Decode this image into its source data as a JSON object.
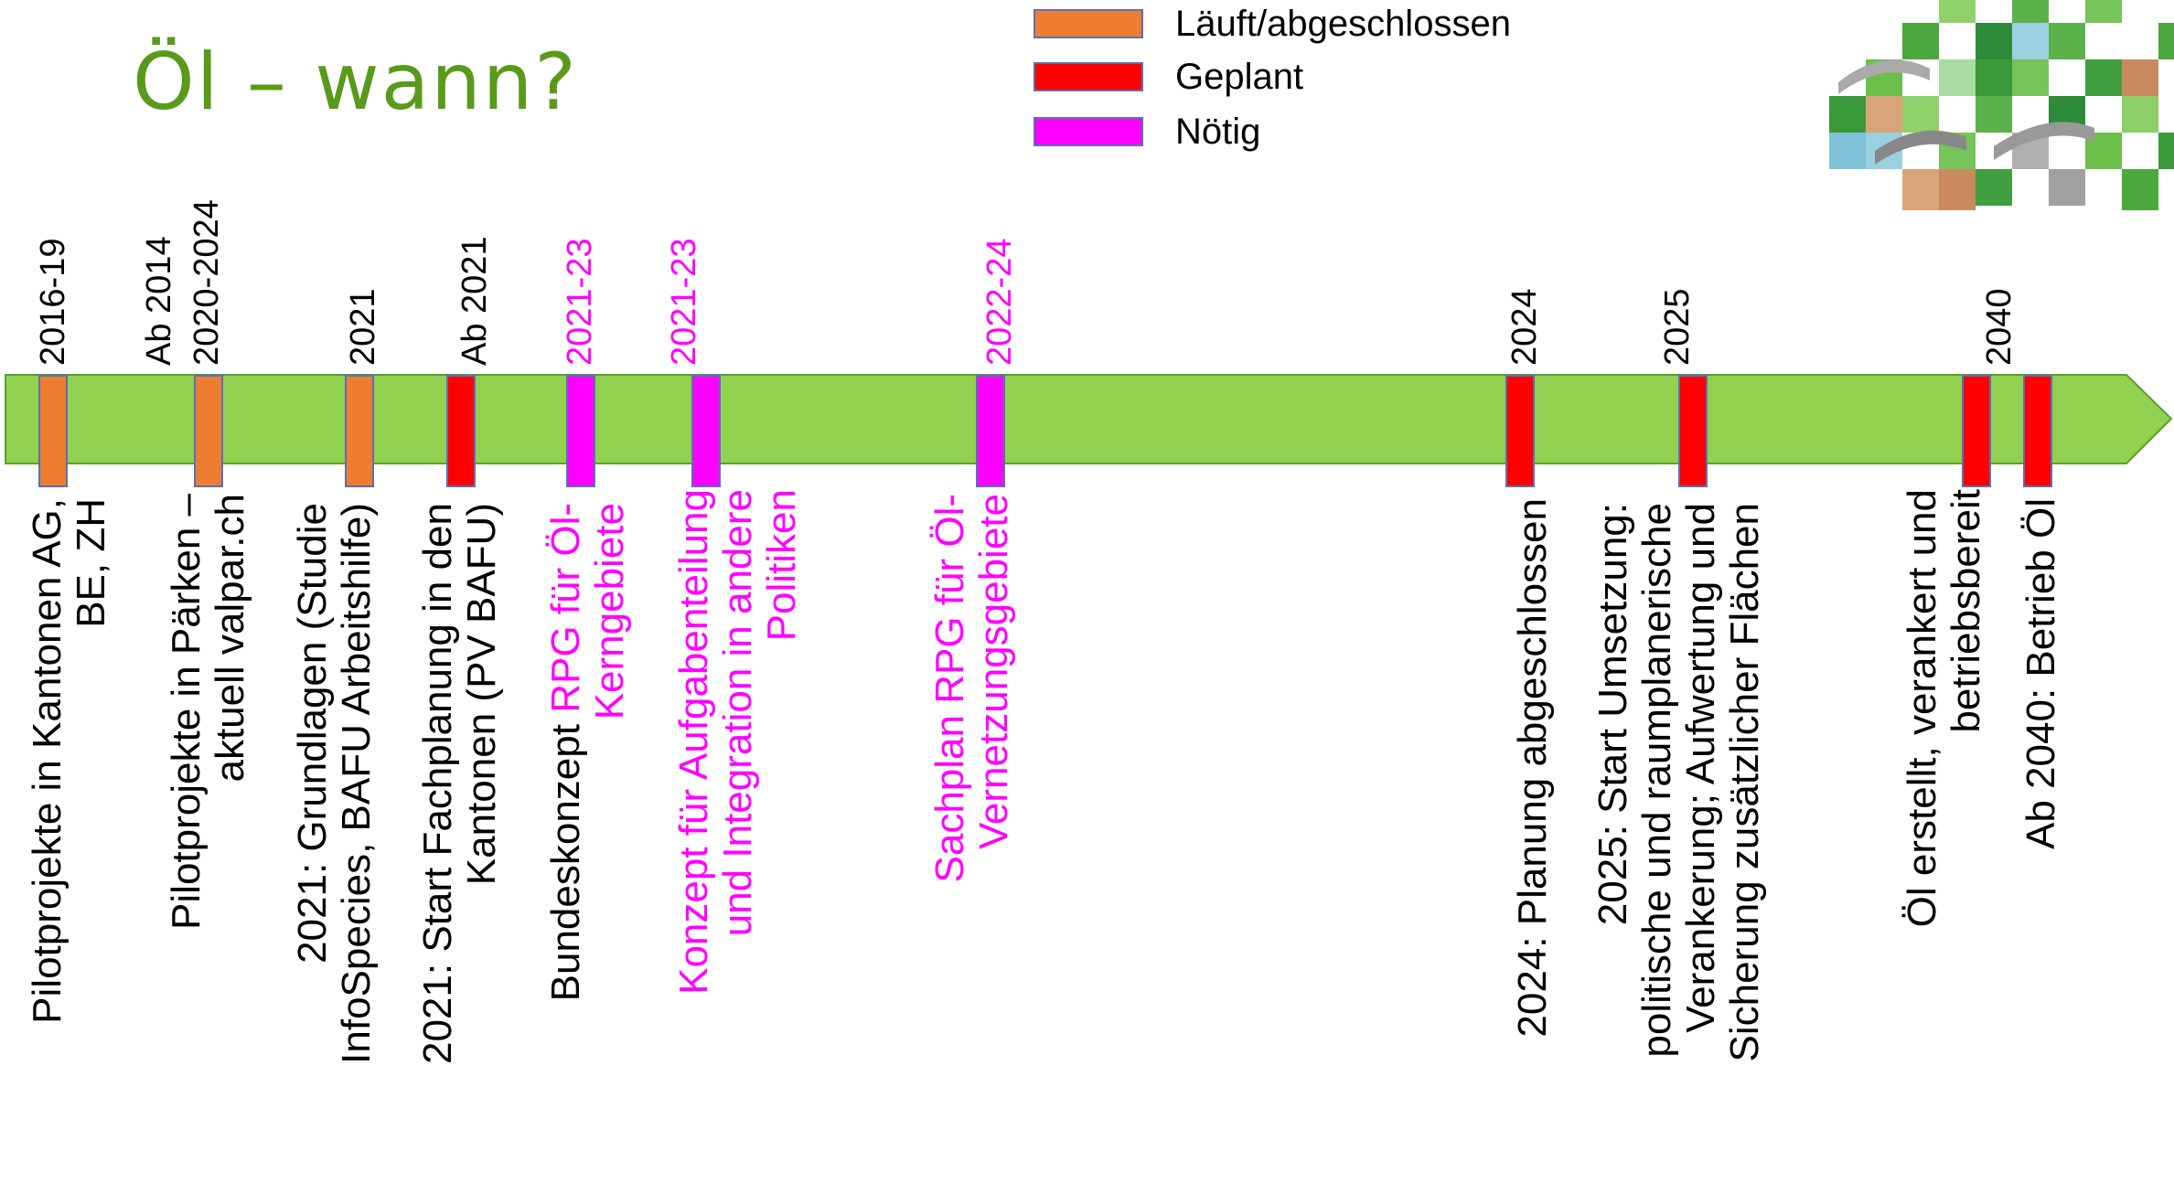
{
  "title": "Öl – wann?",
  "colors": {
    "title": "#5a9a1a",
    "arrow": "#92d050",
    "arrow_border": "#5aa02c",
    "laeuft": "#ed7d31",
    "geplant": "#ff0000",
    "noetig": "#ff00ff"
  },
  "legend": [
    {
      "label": "Läuft/abgeschlossen",
      "color": "#ed7d31"
    },
    {
      "label": "Geplant",
      "color": "#ff0000"
    },
    {
      "label": "Nötig",
      "color": "#ff00ff"
    }
  ],
  "years": {
    "y1": "2016-19",
    "y2a": "Ab 2014",
    "y2b": "2020-2024",
    "y3": "2021",
    "y4": "Ab 2021",
    "y5": "2021-23",
    "y6": "2021-23",
    "y7": "2022-24",
    "y8": "2024",
    "y9": "2025",
    "y10": "2040"
  },
  "descriptions": {
    "d1a": "Pilotprojekte in Kantonen AG,",
    "d1b": "BE, ZH",
    "d2a": "Pilotprojekte in Pärken –",
    "d2b": "aktuell valpar.ch",
    "d3a": "2021: Grundlagen (Studie",
    "d3b": "InfoSpecies, BAFU Arbeitshilfe)",
    "d4a": "2021: Start Fachplanung in den",
    "d4b": "Kantonen (PV BAFU)",
    "d5a_black": "Bundeskonzept ",
    "d5a_pink": "RPG für Öl-",
    "d5b": "Kerngebiete",
    "d6a": "Konzept für Aufgabenteilung",
    "d6b": "und Integration in andere",
    "d6c": "Politiken",
    "d7a": "Sachplan RPG für Öl-",
    "d7b": "Vernetzungsgebiete",
    "d8": "2024: Planung abgeschlossen",
    "d9a": "2025: Start Umsetzung:",
    "d9b": "politische und raumplanerische",
    "d9c": "Verankerung; Aufwertung und",
    "d9d": "Sicherung zusätzlicher Flächen",
    "d10a": "Öl erstellt, verankert und",
    "d10b": "betriebsbereit",
    "d11": "Ab 2040: Betrieb Öl"
  }
}
